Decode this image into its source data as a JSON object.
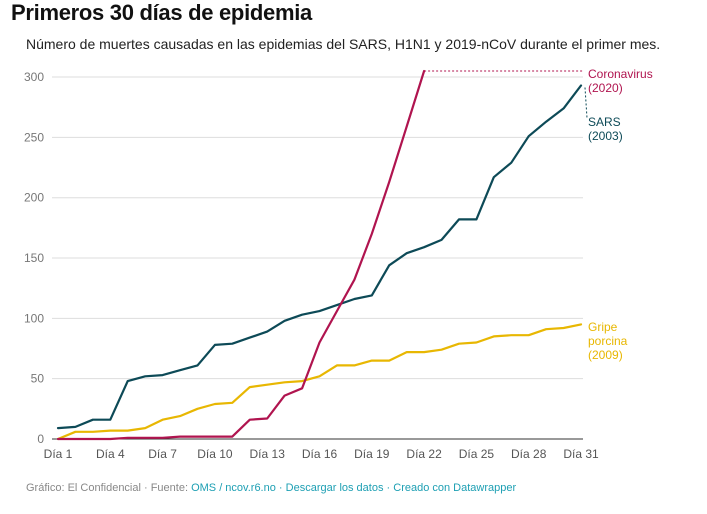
{
  "header": {
    "title": "Primeros 30 días de epidemia",
    "subtitle": "Número de muertes causadas en las epidemias del SARS, H1N1 y 2019-nCoV durante el primer mes."
  },
  "footer": {
    "prefix": "Gráfico: El Confidencial · Fuente: ",
    "source_link": "OMS / ncov.r6.no",
    "sep1": " · ",
    "download_link": "Descargar los datos",
    "sep2": " · ",
    "made_with_link": "Creado con Datawrapper"
  },
  "chart_data": {
    "type": "line",
    "x_tick_labels": [
      "Día 1",
      "Día 4",
      "Día 7",
      "Día 10",
      "Día 13",
      "Día 16",
      "Día 19",
      "Día 22",
      "Día 25",
      "Día 28",
      "Día 31"
    ],
    "x_tick_days": [
      1,
      4,
      7,
      10,
      13,
      16,
      19,
      22,
      25,
      28,
      31
    ],
    "y_ticks": [
      0,
      50,
      100,
      150,
      200,
      250,
      300
    ],
    "ylim": [
      0,
      305
    ],
    "xlim": [
      1,
      31
    ],
    "grid": true,
    "series": [
      {
        "name": "Coronavirus (2020)",
        "label_lines": [
          "Coronavirus",
          "(2020)"
        ],
        "color": "#b0144f",
        "days": [
          1,
          2,
          3,
          4,
          5,
          6,
          7,
          8,
          9,
          10,
          11,
          12,
          13,
          14,
          15,
          16,
          17,
          18,
          19,
          20,
          21,
          22
        ],
        "values": [
          0,
          0,
          0,
          0,
          1,
          1,
          1,
          2,
          2,
          2,
          2,
          16,
          17,
          36,
          42,
          80,
          106,
          132,
          170,
          213,
          259,
          305
        ],
        "continuation_to_day": 31
      },
      {
        "name": "SARS (2003)",
        "label_lines": [
          "SARS",
          "(2003)"
        ],
        "color": "#0d4a57",
        "days": [
          1,
          2,
          3,
          4,
          5,
          6,
          7,
          8,
          9,
          10,
          11,
          12,
          13,
          14,
          15,
          16,
          17,
          18,
          19,
          20,
          21,
          22,
          23,
          24,
          25,
          26,
          27,
          28,
          29,
          30,
          31
        ],
        "values": [
          9,
          10,
          16,
          16,
          48,
          52,
          53,
          57,
          61,
          78,
          79,
          84,
          89,
          98,
          103,
          106,
          111,
          116,
          119,
          144,
          154,
          159,
          165,
          182,
          182,
          217,
          229,
          251,
          263,
          274,
          293
        ]
      },
      {
        "name": "Gripe porcina (2009)",
        "label_lines": [
          "Gripe",
          "porcina",
          "(2009)"
        ],
        "color": "#e8b702",
        "days": [
          1,
          2,
          3,
          4,
          5,
          6,
          7,
          8,
          9,
          10,
          11,
          12,
          13,
          14,
          15,
          16,
          17,
          18,
          19,
          20,
          21,
          22,
          23,
          24,
          25,
          26,
          27,
          28,
          29,
          30,
          31
        ],
        "values": [
          0,
          6,
          6,
          7,
          7,
          9,
          16,
          19,
          25,
          29,
          30,
          43,
          45,
          47,
          48,
          52,
          61,
          61,
          65,
          65,
          72,
          72,
          74,
          79,
          80,
          85,
          86,
          86,
          91,
          92,
          95
        ]
      }
    ]
  }
}
